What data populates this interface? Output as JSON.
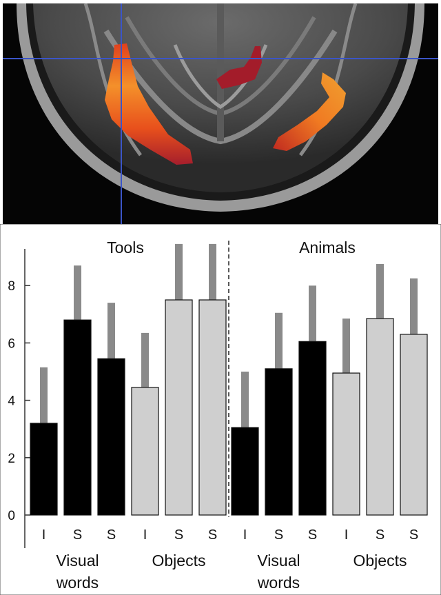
{
  "figure": {
    "brain_panel": {
      "description_icon": "brain-mri-axial-slice-icon"
    },
    "colors": {
      "visual_words_bar": "#000000",
      "objects_bar": "#cfcfcf",
      "error_bar": "#8a8a8a",
      "crosshair": "#3b55c8"
    }
  },
  "chart_data": {
    "type": "bar",
    "panels": [
      {
        "title": "Tools",
        "categories": [
          "I",
          "S",
          "S",
          "I",
          "S",
          "S"
        ],
        "groups": [
          {
            "label_line1": "Visual",
            "label_line2": "words",
            "indices": [
              0,
              1,
              2
            ]
          },
          {
            "label_line1": "Objects",
            "label_line2": "",
            "indices": [
              3,
              4,
              5
            ]
          }
        ],
        "values": [
          3.2,
          6.8,
          5.45,
          4.45,
          7.5,
          7.5
        ],
        "error_top": [
          5.15,
          8.7,
          7.4,
          6.35,
          9.45,
          9.45
        ]
      },
      {
        "title": "Animals",
        "categories": [
          "I",
          "S",
          "S",
          "I",
          "S",
          "S"
        ],
        "groups": [
          {
            "label_line1": "Visual",
            "label_line2": "words",
            "indices": [
              0,
              1,
              2
            ]
          },
          {
            "label_line1": "Objects",
            "label_line2": "",
            "indices": [
              3,
              4,
              5
            ]
          }
        ],
        "values": [
          3.05,
          5.1,
          6.05,
          4.95,
          6.85,
          6.3
        ],
        "error_top": [
          5.0,
          7.05,
          8.0,
          6.85,
          8.75,
          8.25
        ]
      }
    ],
    "y_ticks": [
      "0",
      "2",
      "4",
      "6",
      "8"
    ],
    "ylim": [
      0,
      9.4
    ],
    "xlabel": "",
    "ylabel": "",
    "grid": false
  }
}
